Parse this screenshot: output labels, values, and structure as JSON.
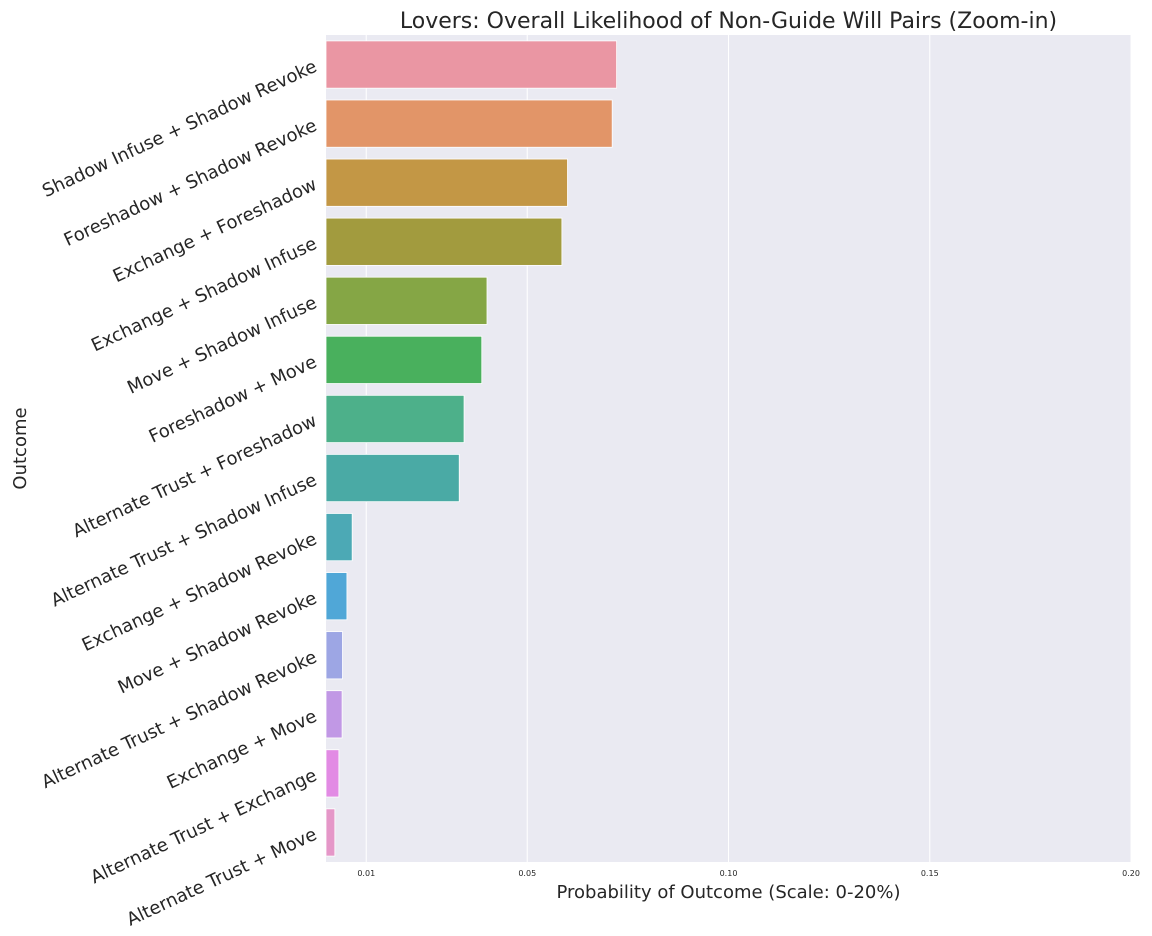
{
  "chart_data": {
    "type": "bar",
    "orientation": "horizontal",
    "title": "Lovers: Overall Likelihood of Non-Guide Will Pairs (Zoom-in)",
    "xlabel": "Probability of Outcome (Scale: 0-20%)",
    "ylabel": "Outcome",
    "xlim": [
      0.0,
      0.2
    ],
    "xticks": [
      0.01,
      0.05,
      0.1,
      0.15,
      0.2
    ],
    "xtick_labels": [
      "0.01",
      "0.05",
      "0.10",
      "0.15",
      "0.20"
    ],
    "grid": true,
    "legend": "none",
    "categories": [
      "Shadow Infuse + Shadow Revoke",
      "Foreshadow + Shadow Revoke",
      "Exchange + Foreshadow",
      "Exchange + Shadow Infuse",
      "Move + Shadow Infuse",
      "Foreshadow + Move",
      "Alternate Trust + Foreshadow",
      "Alternate Trust + Shadow Infuse",
      "Exchange + Shadow Revoke",
      "Move + Shadow Revoke",
      "Alternate Trust + Shadow Revoke",
      "Exchange + Move",
      "Alternate Trust + Exchange",
      "Alternate Trust + Move"
    ],
    "values": [
      0.0722,
      0.0711,
      0.06,
      0.0586,
      0.04,
      0.0387,
      0.0343,
      0.0331,
      0.0065,
      0.0052,
      0.0041,
      0.004,
      0.0032,
      0.0022
    ],
    "colors": [
      "#ea96a3",
      "#e29568",
      "#c39745",
      "#a29b3e",
      "#85a645",
      "#49b05d",
      "#4db08a",
      "#4aaaa5",
      "#4ca9b5",
      "#50a7d7",
      "#9da6e4",
      "#c198e5",
      "#e28be4",
      "#e597c8"
    ]
  }
}
